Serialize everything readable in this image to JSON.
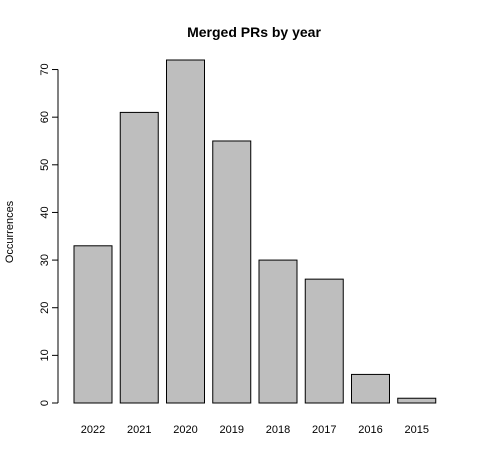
{
  "chart_data": {
    "type": "bar",
    "title": "Merged PRs by year",
    "xlabel": "",
    "ylabel": "Occurrences",
    "categories": [
      "2022",
      "2021",
      "2020",
      "2019",
      "2018",
      "2017",
      "2016",
      "2015"
    ],
    "values": [
      33,
      61,
      72,
      55,
      30,
      26,
      6,
      1
    ],
    "ylim": [
      0,
      72
    ],
    "yticks": [
      0,
      10,
      20,
      30,
      40,
      50,
      60,
      70
    ],
    "grid": false,
    "legend": "none",
    "bar_color": "#bebebe",
    "bar_stroke": "#000000"
  }
}
